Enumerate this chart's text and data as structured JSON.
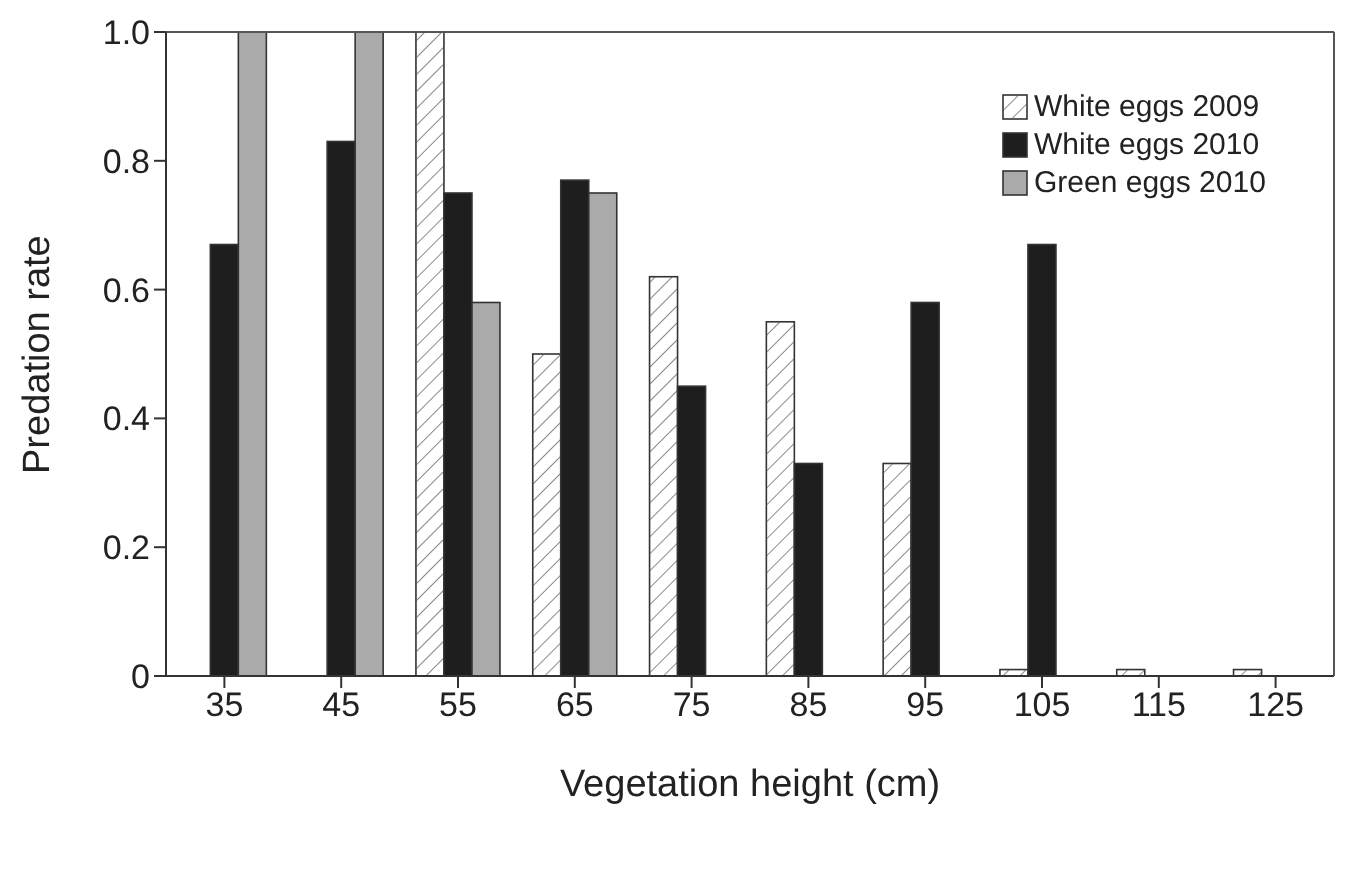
{
  "chart_data": {
    "type": "bar",
    "xlabel": "Vegetation height (cm)",
    "ylabel": "Predation rate",
    "categories": [
      "35",
      "45",
      "55",
      "65",
      "75",
      "85",
      "95",
      "105",
      "115",
      "125"
    ],
    "series": [
      {
        "name": "White eggs 2009",
        "color": "#ffffff",
        "values": [
          null,
          null,
          1.0,
          0.5,
          0.62,
          0.55,
          0.33,
          0.01,
          0.01,
          0.01
        ]
      },
      {
        "name": "White eggs 2010",
        "color": "#1e1e1e",
        "values": [
          0.67,
          0.83,
          0.75,
          0.77,
          0.45,
          0.33,
          0.58,
          0.67,
          null,
          null
        ]
      },
      {
        "name": "Green eggs 2010",
        "color": "#aaaaaa",
        "values": [
          1.0,
          1.0,
          0.58,
          0.75,
          null,
          null,
          null,
          null,
          null,
          null
        ]
      }
    ],
    "ylim": [
      0,
      1
    ],
    "yticks": [
      0,
      0.2,
      0.4,
      0.6,
      0.8,
      {
        "value": 1,
        "label": "1.0"
      }
    ],
    "grid": false,
    "legend": "top right"
  }
}
